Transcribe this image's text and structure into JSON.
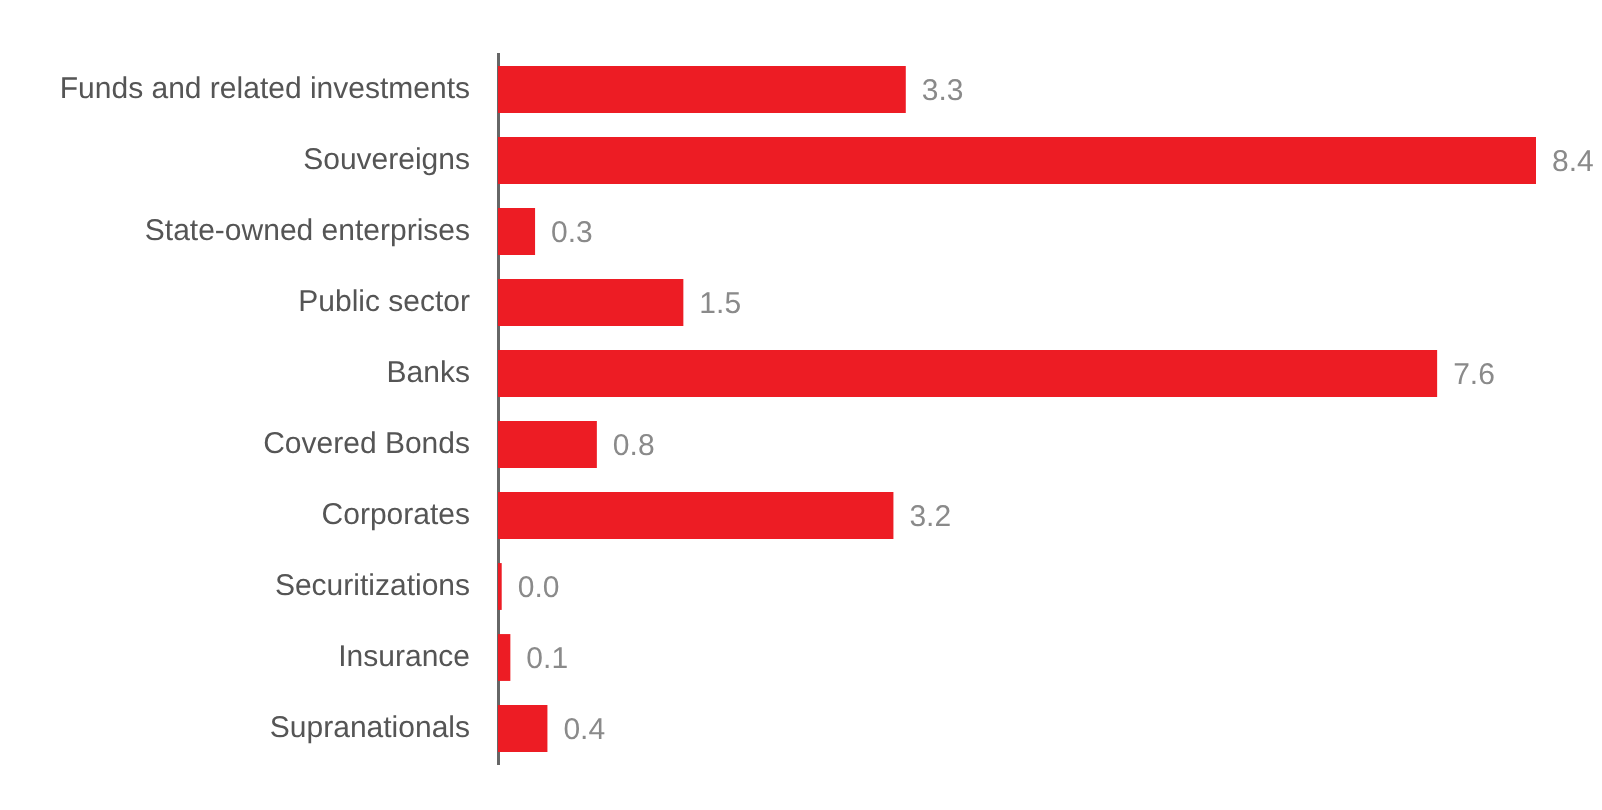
{
  "chart_data": {
    "type": "bar",
    "orientation": "horizontal",
    "categories": [
      "Funds and related investments",
      "Souvereigns",
      "State-owned enterprises",
      "Public sector",
      "Banks",
      "Covered Bonds",
      "Corporates",
      "Securitizations",
      "Insurance",
      "Supranationals"
    ],
    "values": [
      3.3,
      8.4,
      0.3,
      1.5,
      7.6,
      0.8,
      3.2,
      0.03,
      0.1,
      0.4
    ],
    "value_labels": [
      "3.3",
      "8.4",
      "0.3",
      "1.5",
      "7.6",
      "0.8",
      "3.2",
      "0.0",
      "0.1",
      "0.4"
    ],
    "color": "#ed1c24",
    "legend": false
  }
}
